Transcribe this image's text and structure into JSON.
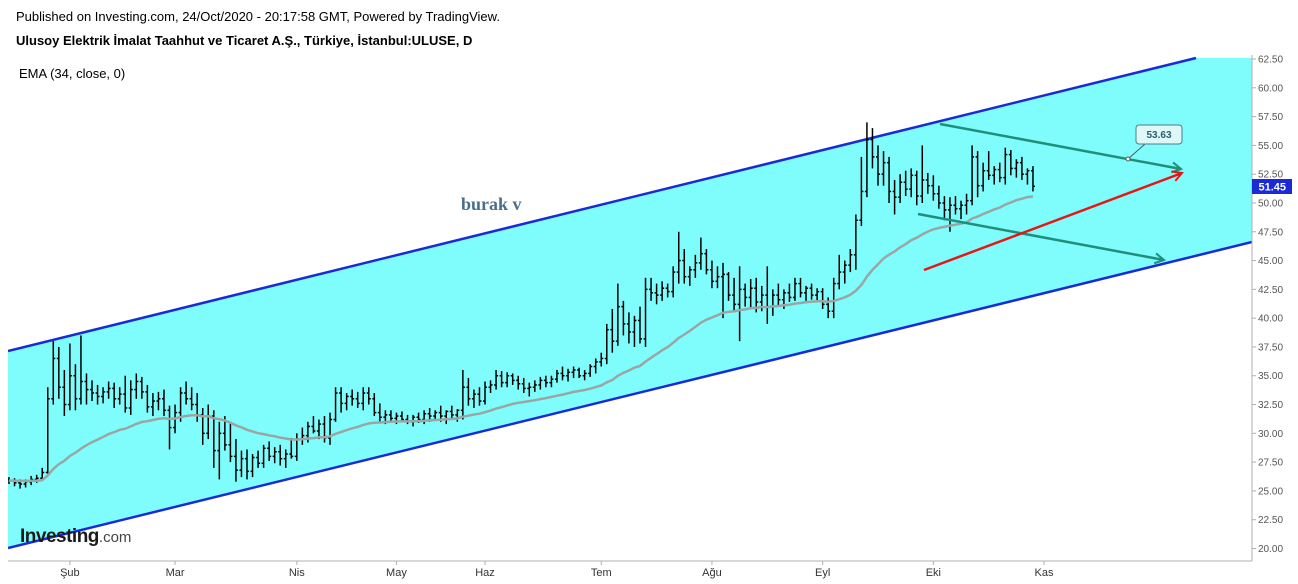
{
  "header": {
    "published": "Published on Investing.com, 24/Oct/2020 - 20:17:58 GMT, Powered by TradingView.",
    "instrument": "Ulusoy Elektrik İmalat Taahhut ve Ticaret A.Ş., Türkiye, İstanbul:ULUSE, D",
    "indicator": "EMA (34, close, 0)"
  },
  "logo": {
    "main": "Investing",
    "suffix": ".com"
  },
  "colors": {
    "channel_fill": "#7ffdfd",
    "channel_line": "#1a2bd6",
    "ema_line": "#9aa6a4",
    "price_bar": "#000000",
    "green_arrow": "#1f8f7a",
    "red_arrow": "#e61616",
    "price_badge": "#1a2bd6"
  },
  "chart_data": {
    "type": "bar",
    "title": "",
    "y_axis": {
      "position": "right",
      "min": 20,
      "max": 62.5,
      "ticks": [
        "20.00",
        "22.50",
        "25.00",
        "27.50",
        "30.00",
        "32.50",
        "35.00",
        "37.50",
        "40.00",
        "42.50",
        "45.00",
        "47.50",
        "50.00",
        "52.50",
        "55.00",
        "57.50",
        "60.00",
        "62.50"
      ]
    },
    "x_axis": {
      "labels": [
        {
          "text": "Şub",
          "index": 11
        },
        {
          "text": "Mar",
          "index": 30
        },
        {
          "text": "Nis",
          "index": 52
        },
        {
          "text": "May",
          "index": 70
        },
        {
          "text": "Haz",
          "index": 86
        },
        {
          "text": "Tem",
          "index": 107
        },
        {
          "text": "Ağu",
          "index": 127
        },
        {
          "text": "Eyl",
          "index": 147
        },
        {
          "text": "Eki",
          "index": 167
        },
        {
          "text": "Kas",
          "index": 187
        }
      ]
    },
    "last_price": "51.45",
    "annotation_text": "burak v",
    "callout_value": "53.63",
    "ohlc_daily": [
      [
        26.0,
        26.2,
        25.6,
        25.9
      ],
      [
        25.9,
        26.1,
        25.4,
        25.7
      ],
      [
        25.7,
        26.0,
        25.2,
        25.6
      ],
      [
        25.6,
        26.0,
        25.3,
        25.8
      ],
      [
        25.8,
        26.3,
        25.5,
        26.0
      ],
      [
        26.0,
        26.4,
        25.7,
        26.1
      ],
      [
        26.1,
        27.0,
        25.9,
        26.6
      ],
      [
        26.6,
        34.0,
        26.5,
        33.0
      ],
      [
        33.0,
        38.0,
        32.5,
        36.5
      ],
      [
        36.5,
        37.5,
        33.0,
        34.0
      ],
      [
        34.0,
        35.5,
        31.5,
        32.5
      ],
      [
        32.5,
        37.8,
        32.0,
        35.0
      ],
      [
        35.0,
        36.0,
        32.0,
        33.0
      ],
      [
        33.0,
        38.5,
        32.5,
        34.5
      ],
      [
        34.5,
        35.2,
        32.5,
        33.8
      ],
      [
        33.8,
        34.6,
        32.8,
        33.5
      ],
      [
        33.5,
        34.2,
        32.5,
        33.2
      ],
      [
        33.2,
        34.0,
        32.6,
        33.6
      ],
      [
        33.6,
        34.5,
        33.0,
        33.9
      ],
      [
        33.9,
        34.4,
        32.2,
        33.0
      ],
      [
        33.0,
        34.0,
        32.5,
        33.4
      ],
      [
        33.4,
        35.0,
        31.8,
        32.2
      ],
      [
        32.2,
        34.6,
        31.6,
        33.8
      ],
      [
        33.8,
        35.2,
        33.0,
        34.5
      ],
      [
        34.5,
        34.9,
        33.0,
        33.6
      ],
      [
        33.6,
        34.2,
        31.8,
        32.3
      ],
      [
        32.3,
        33.5,
        31.5,
        32.8
      ],
      [
        32.8,
        33.6,
        32.0,
        33.0
      ],
      [
        33.0,
        33.8,
        31.5,
        32.0
      ],
      [
        32.0,
        32.4,
        28.6,
        30.5
      ],
      [
        30.5,
        32.5,
        30.0,
        31.8
      ],
      [
        31.8,
        34.0,
        31.0,
        33.5
      ],
      [
        33.5,
        34.5,
        32.5,
        33.0
      ],
      [
        33.0,
        34.0,
        32.0,
        32.5
      ],
      [
        32.5,
        33.5,
        31.0,
        31.6
      ],
      [
        31.6,
        32.2,
        29.0,
        30.0
      ],
      [
        30.0,
        32.5,
        29.5,
        31.5
      ],
      [
        31.5,
        32.0,
        27.0,
        28.5
      ],
      [
        28.5,
        31.0,
        26.0,
        30.0
      ],
      [
        30.0,
        31.5,
        28.5,
        29.0
      ],
      [
        29.0,
        31.0,
        27.5,
        28.0
      ],
      [
        28.0,
        29.5,
        25.8,
        26.8
      ],
      [
        26.8,
        28.5,
        26.2,
        27.8
      ],
      [
        27.8,
        28.6,
        26.0,
        26.7
      ],
      [
        26.7,
        28.2,
        26.2,
        27.9
      ],
      [
        27.9,
        28.5,
        27.0,
        27.4
      ],
      [
        27.4,
        29.0,
        27.0,
        28.7
      ],
      [
        28.7,
        29.3,
        27.6,
        28.0
      ],
      [
        28.0,
        28.8,
        27.4,
        28.4
      ],
      [
        28.4,
        29.0,
        27.2,
        27.8
      ],
      [
        27.8,
        28.6,
        27.0,
        28.2
      ],
      [
        28.2,
        29.6,
        27.8,
        28.0
      ],
      [
        28.0,
        30.0,
        27.6,
        29.5
      ],
      [
        29.5,
        30.5,
        29.0,
        29.8
      ],
      [
        29.8,
        31.0,
        29.2,
        30.6
      ],
      [
        30.6,
        31.5,
        30.0,
        30.2
      ],
      [
        30.2,
        31.2,
        29.5,
        30.8
      ],
      [
        30.8,
        31.5,
        29.2,
        29.6
      ],
      [
        29.6,
        31.8,
        29.0,
        31.2
      ],
      [
        31.2,
        34.0,
        31.0,
        33.5
      ],
      [
        33.5,
        34.0,
        31.8,
        32.6
      ],
      [
        32.6,
        33.5,
        32.0,
        33.2
      ],
      [
        33.2,
        33.8,
        32.4,
        33.0
      ],
      [
        33.0,
        33.6,
        32.2,
        32.6
      ],
      [
        32.6,
        34.0,
        32.0,
        33.5
      ],
      [
        33.5,
        34.0,
        32.5,
        33.0
      ],
      [
        33.0,
        33.5,
        31.5,
        31.8
      ],
      [
        31.8,
        32.6,
        31.0,
        31.4
      ],
      [
        31.4,
        32.0,
        30.8,
        31.6
      ],
      [
        31.6,
        32.0,
        31.0,
        31.3
      ],
      [
        31.3,
        31.8,
        30.8,
        31.5
      ],
      [
        31.5,
        31.9,
        31.0,
        31.2
      ],
      [
        31.2,
        31.6,
        30.8,
        31.0
      ],
      [
        31.0,
        31.6,
        30.6,
        31.4
      ],
      [
        31.4,
        31.8,
        30.9,
        31.2
      ],
      [
        31.2,
        32.0,
        30.8,
        31.7
      ],
      [
        31.7,
        32.2,
        31.0,
        31.5
      ],
      [
        31.5,
        32.0,
        31.2,
        31.8
      ],
      [
        31.8,
        32.4,
        31.0,
        31.5
      ],
      [
        31.5,
        32.0,
        30.8,
        31.9
      ],
      [
        31.9,
        32.4,
        31.2,
        31.6
      ],
      [
        31.6,
        32.1,
        31.0,
        32.0
      ],
      [
        32.0,
        35.5,
        31.2,
        34.0
      ],
      [
        34.0,
        34.8,
        32.4,
        33.0
      ],
      [
        33.0,
        33.8,
        32.2,
        33.4
      ],
      [
        33.4,
        34.0,
        32.4,
        32.8
      ],
      [
        32.8,
        34.5,
        32.5,
        34.0
      ],
      [
        34.0,
        34.6,
        33.5,
        34.2
      ],
      [
        34.2,
        35.5,
        33.8,
        35.0
      ],
      [
        35.0,
        35.4,
        34.0,
        34.4
      ],
      [
        34.4,
        35.3,
        34.0,
        35.0
      ],
      [
        35.0,
        35.2,
        34.2,
        34.6
      ],
      [
        34.6,
        35.0,
        33.8,
        34.3
      ],
      [
        34.3,
        34.8,
        33.5,
        33.9
      ],
      [
        33.9,
        34.4,
        33.2,
        34.0
      ],
      [
        34.0,
        34.6,
        33.6,
        34.2
      ],
      [
        34.2,
        34.9,
        33.8,
        34.6
      ],
      [
        34.6,
        35.0,
        34.0,
        34.4
      ],
      [
        34.4,
        35.0,
        34.0,
        34.7
      ],
      [
        34.7,
        35.5,
        34.4,
        35.2
      ],
      [
        35.2,
        35.8,
        34.6,
        35.0
      ],
      [
        35.0,
        35.6,
        34.5,
        35.3
      ],
      [
        35.3,
        35.8,
        34.8,
        35.5
      ],
      [
        35.5,
        35.7,
        34.8,
        35.0
      ],
      [
        35.0,
        35.5,
        34.6,
        35.2
      ],
      [
        35.2,
        36.0,
        34.9,
        35.8
      ],
      [
        35.8,
        36.5,
        35.2,
        36.2
      ],
      [
        36.2,
        37.0,
        35.8,
        36.5
      ],
      [
        36.5,
        39.5,
        36.0,
        39.0
      ],
      [
        39.0,
        40.8,
        37.0,
        38.0
      ],
      [
        38.0,
        43.0,
        37.6,
        41.0
      ],
      [
        41.0,
        41.5,
        38.5,
        39.5
      ],
      [
        39.5,
        40.5,
        37.8,
        38.8
      ],
      [
        38.8,
        40.2,
        37.5,
        39.8
      ],
      [
        39.8,
        41.0,
        37.8,
        38.2
      ],
      [
        38.2,
        43.5,
        37.5,
        42.5
      ],
      [
        42.5,
        43.5,
        41.5,
        42.2
      ],
      [
        42.2,
        43.0,
        41.2,
        42.0
      ],
      [
        42.0,
        43.2,
        41.5,
        42.6
      ],
      [
        42.6,
        43.0,
        41.8,
        42.3
      ],
      [
        42.3,
        44.5,
        41.8,
        44.0
      ],
      [
        44.0,
        47.5,
        43.0,
        45.0
      ],
      [
        45.0,
        46.0,
        43.0,
        43.6
      ],
      [
        43.6,
        44.5,
        42.8,
        44.2
      ],
      [
        44.2,
        45.5,
        43.5,
        44.8
      ],
      [
        44.8,
        47.0,
        44.2,
        45.6
      ],
      [
        45.6,
        46.0,
        43.8,
        44.2
      ],
      [
        44.2,
        45.0,
        42.6,
        43.2
      ],
      [
        43.2,
        44.5,
        42.6,
        43.6
      ],
      [
        43.6,
        44.8,
        40.0,
        43.8
      ],
      [
        43.8,
        44.0,
        41.5,
        42.0
      ],
      [
        42.0,
        43.5,
        40.5,
        41.2
      ],
      [
        41.2,
        44.5,
        38.0,
        42.5
      ],
      [
        42.5,
        43.0,
        41.0,
        41.8
      ],
      [
        41.8,
        43.4,
        40.8,
        42.6
      ],
      [
        42.6,
        43.5,
        40.5,
        41.4
      ],
      [
        41.4,
        42.8,
        40.6,
        42.0
      ],
      [
        42.0,
        44.5,
        39.5,
        41.0
      ],
      [
        41.0,
        42.5,
        40.2,
        42.0
      ],
      [
        42.0,
        43.0,
        41.0,
        41.6
      ],
      [
        41.6,
        42.5,
        40.8,
        42.2
      ],
      [
        42.2,
        43.0,
        41.4,
        41.8
      ],
      [
        41.8,
        43.5,
        41.5,
        43.0
      ],
      [
        43.0,
        43.5,
        41.8,
        42.2
      ],
      [
        42.2,
        42.8,
        41.5,
        42.6
      ],
      [
        42.6,
        43.0,
        41.6,
        42.0
      ],
      [
        42.0,
        42.6,
        41.4,
        42.3
      ],
      [
        42.3,
        42.6,
        40.8,
        41.2
      ],
      [
        41.2,
        41.8,
        40.0,
        40.6
      ],
      [
        40.6,
        43.5,
        40.0,
        43.0
      ],
      [
        43.0,
        45.5,
        42.5,
        44.0
      ],
      [
        44.0,
        45.0,
        43.0,
        44.6
      ],
      [
        44.6,
        46.0,
        44.0,
        45.5
      ],
      [
        45.5,
        49.0,
        44.2,
        48.5
      ],
      [
        48.5,
        54.0,
        48.0,
        51.0
      ],
      [
        51.0,
        57.0,
        50.5,
        55.5
      ],
      [
        55.5,
        56.5,
        53.0,
        54.0
      ],
      [
        54.0,
        55.0,
        51.5,
        52.5
      ],
      [
        52.5,
        54.5,
        51.5,
        53.5
      ],
      [
        53.5,
        54.0,
        50.0,
        51.0
      ],
      [
        51.0,
        52.0,
        49.0,
        50.5
      ],
      [
        50.5,
        52.5,
        50.0,
        51.8
      ],
      [
        51.8,
        52.8,
        50.6,
        51.2
      ],
      [
        51.2,
        53.0,
        50.5,
        52.4
      ],
      [
        52.4,
        52.8,
        49.8,
        50.6
      ],
      [
        50.6,
        55.0,
        50.0,
        52.0
      ],
      [
        52.0,
        52.6,
        50.8,
        51.5
      ],
      [
        51.5,
        52.4,
        50.2,
        50.8
      ],
      [
        50.8,
        51.5,
        49.5,
        50.0
      ],
      [
        50.0,
        50.6,
        48.5,
        49.4
      ],
      [
        49.4,
        50.5,
        47.5,
        49.8
      ],
      [
        49.8,
        50.6,
        49.0,
        49.5
      ],
      [
        49.5,
        50.2,
        48.6,
        49.8
      ],
      [
        49.8,
        50.8,
        49.0,
        50.2
      ],
      [
        50.2,
        55.0,
        49.8,
        54.0
      ],
      [
        54.0,
        54.5,
        50.5,
        51.5
      ],
      [
        51.5,
        53.5,
        51.0,
        52.8
      ],
      [
        52.8,
        54.5,
        52.0,
        52.4
      ],
      [
        52.4,
        53.2,
        51.6,
        52.9
      ],
      [
        52.9,
        53.5,
        51.8,
        52.2
      ],
      [
        52.2,
        54.8,
        51.6,
        54.2
      ],
      [
        54.2,
        54.6,
        52.4,
        53.0
      ],
      [
        53.0,
        53.8,
        52.2,
        53.5
      ],
      [
        53.5,
        54.0,
        52.0,
        52.5
      ],
      [
        52.5,
        53.0,
        51.6,
        52.8
      ],
      [
        52.8,
        53.2,
        51.0,
        51.45
      ]
    ]
  }
}
